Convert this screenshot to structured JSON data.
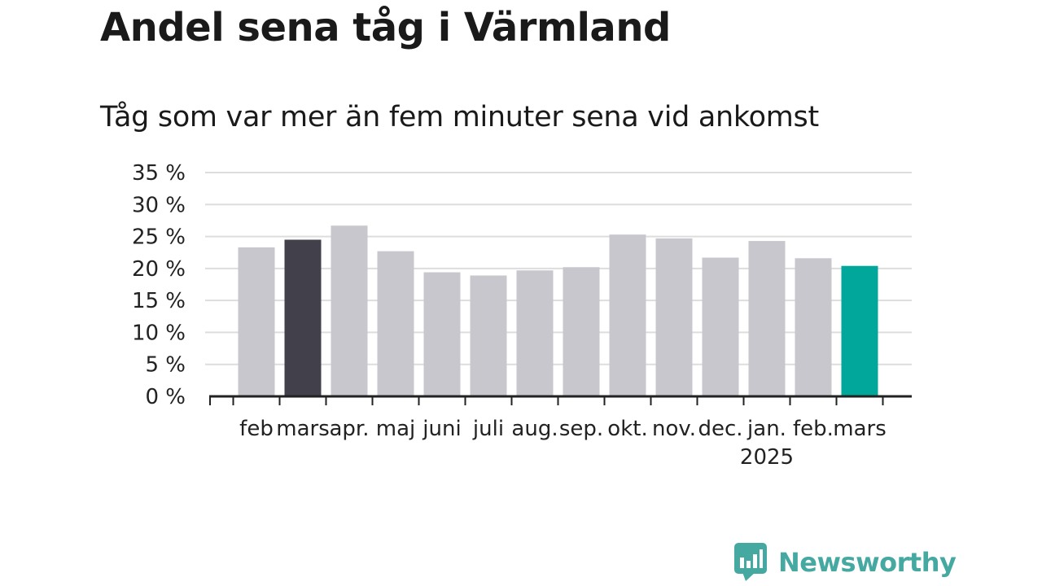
{
  "header": {
    "title": "Andel sena tåg i Värmland",
    "subtitle": "Tåg som var mer än fem minuter sena vid ankomst"
  },
  "brand": {
    "name": "Newsworthy",
    "icon": "newsworthy-logo-icon",
    "color": "#45a9a2"
  },
  "chart_data": {
    "type": "bar",
    "categories": [
      "feb",
      "mars",
      "apr.",
      "maj",
      "juni",
      "juli",
      "aug.",
      "sep.",
      "okt.",
      "nov.",
      "dec.",
      "jan.",
      "feb.",
      "mars"
    ],
    "year_label": {
      "under": "jan.",
      "text": "2025"
    },
    "values": [
      23.3,
      24.5,
      26.7,
      22.7,
      19.4,
      18.9,
      19.7,
      20.2,
      25.3,
      24.7,
      21.7,
      24.3,
      21.6,
      20.4
    ],
    "yticks": [
      "0 %",
      "5 %",
      "10 %",
      "15 %",
      "20 %",
      "25 %",
      "30 %",
      "35 %"
    ],
    "ylim": [
      0,
      35
    ],
    "grid": true,
    "colors": {
      "default": "#c8c7cd",
      "highlight_dark": "#42404b",
      "highlight_latest": "#00a79a",
      "grid": "#dddddd",
      "axis": "#222222"
    },
    "highlight_dark_index": 1,
    "highlight_latest_index": 13
  }
}
